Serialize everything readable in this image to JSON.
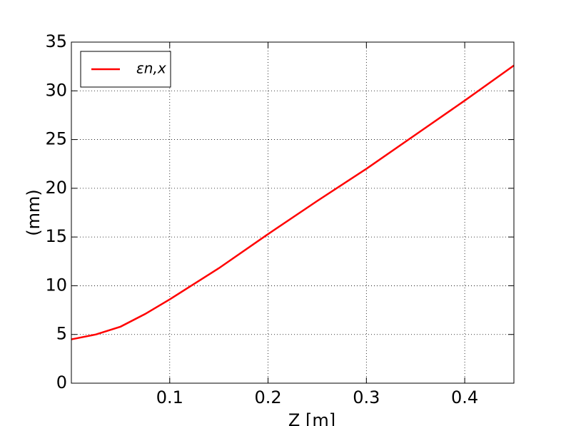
{
  "chart_data": {
    "type": "line",
    "xlabel": "Z [m]",
    "ylabel": "(mm)",
    "x": [
      0,
      0.025,
      0.05,
      0.075,
      0.1,
      0.15,
      0.2,
      0.25,
      0.3,
      0.35,
      0.4,
      0.45
    ],
    "series": [
      {
        "name": "εn,x",
        "color": "#ff0000",
        "values": [
          4.5,
          5.0,
          5.8,
          7.1,
          8.6,
          11.8,
          15.3,
          18.7,
          22.0,
          25.5,
          29.0,
          32.6
        ]
      }
    ],
    "xlim": [
      0,
      0.45
    ],
    "xticks": [
      0.1,
      0.2,
      0.3,
      0.4
    ],
    "ylim": [
      0,
      35
    ],
    "yticks": [
      0,
      5,
      10,
      15,
      20,
      25,
      30,
      35
    ],
    "grid": true,
    "legend": "upper left"
  }
}
